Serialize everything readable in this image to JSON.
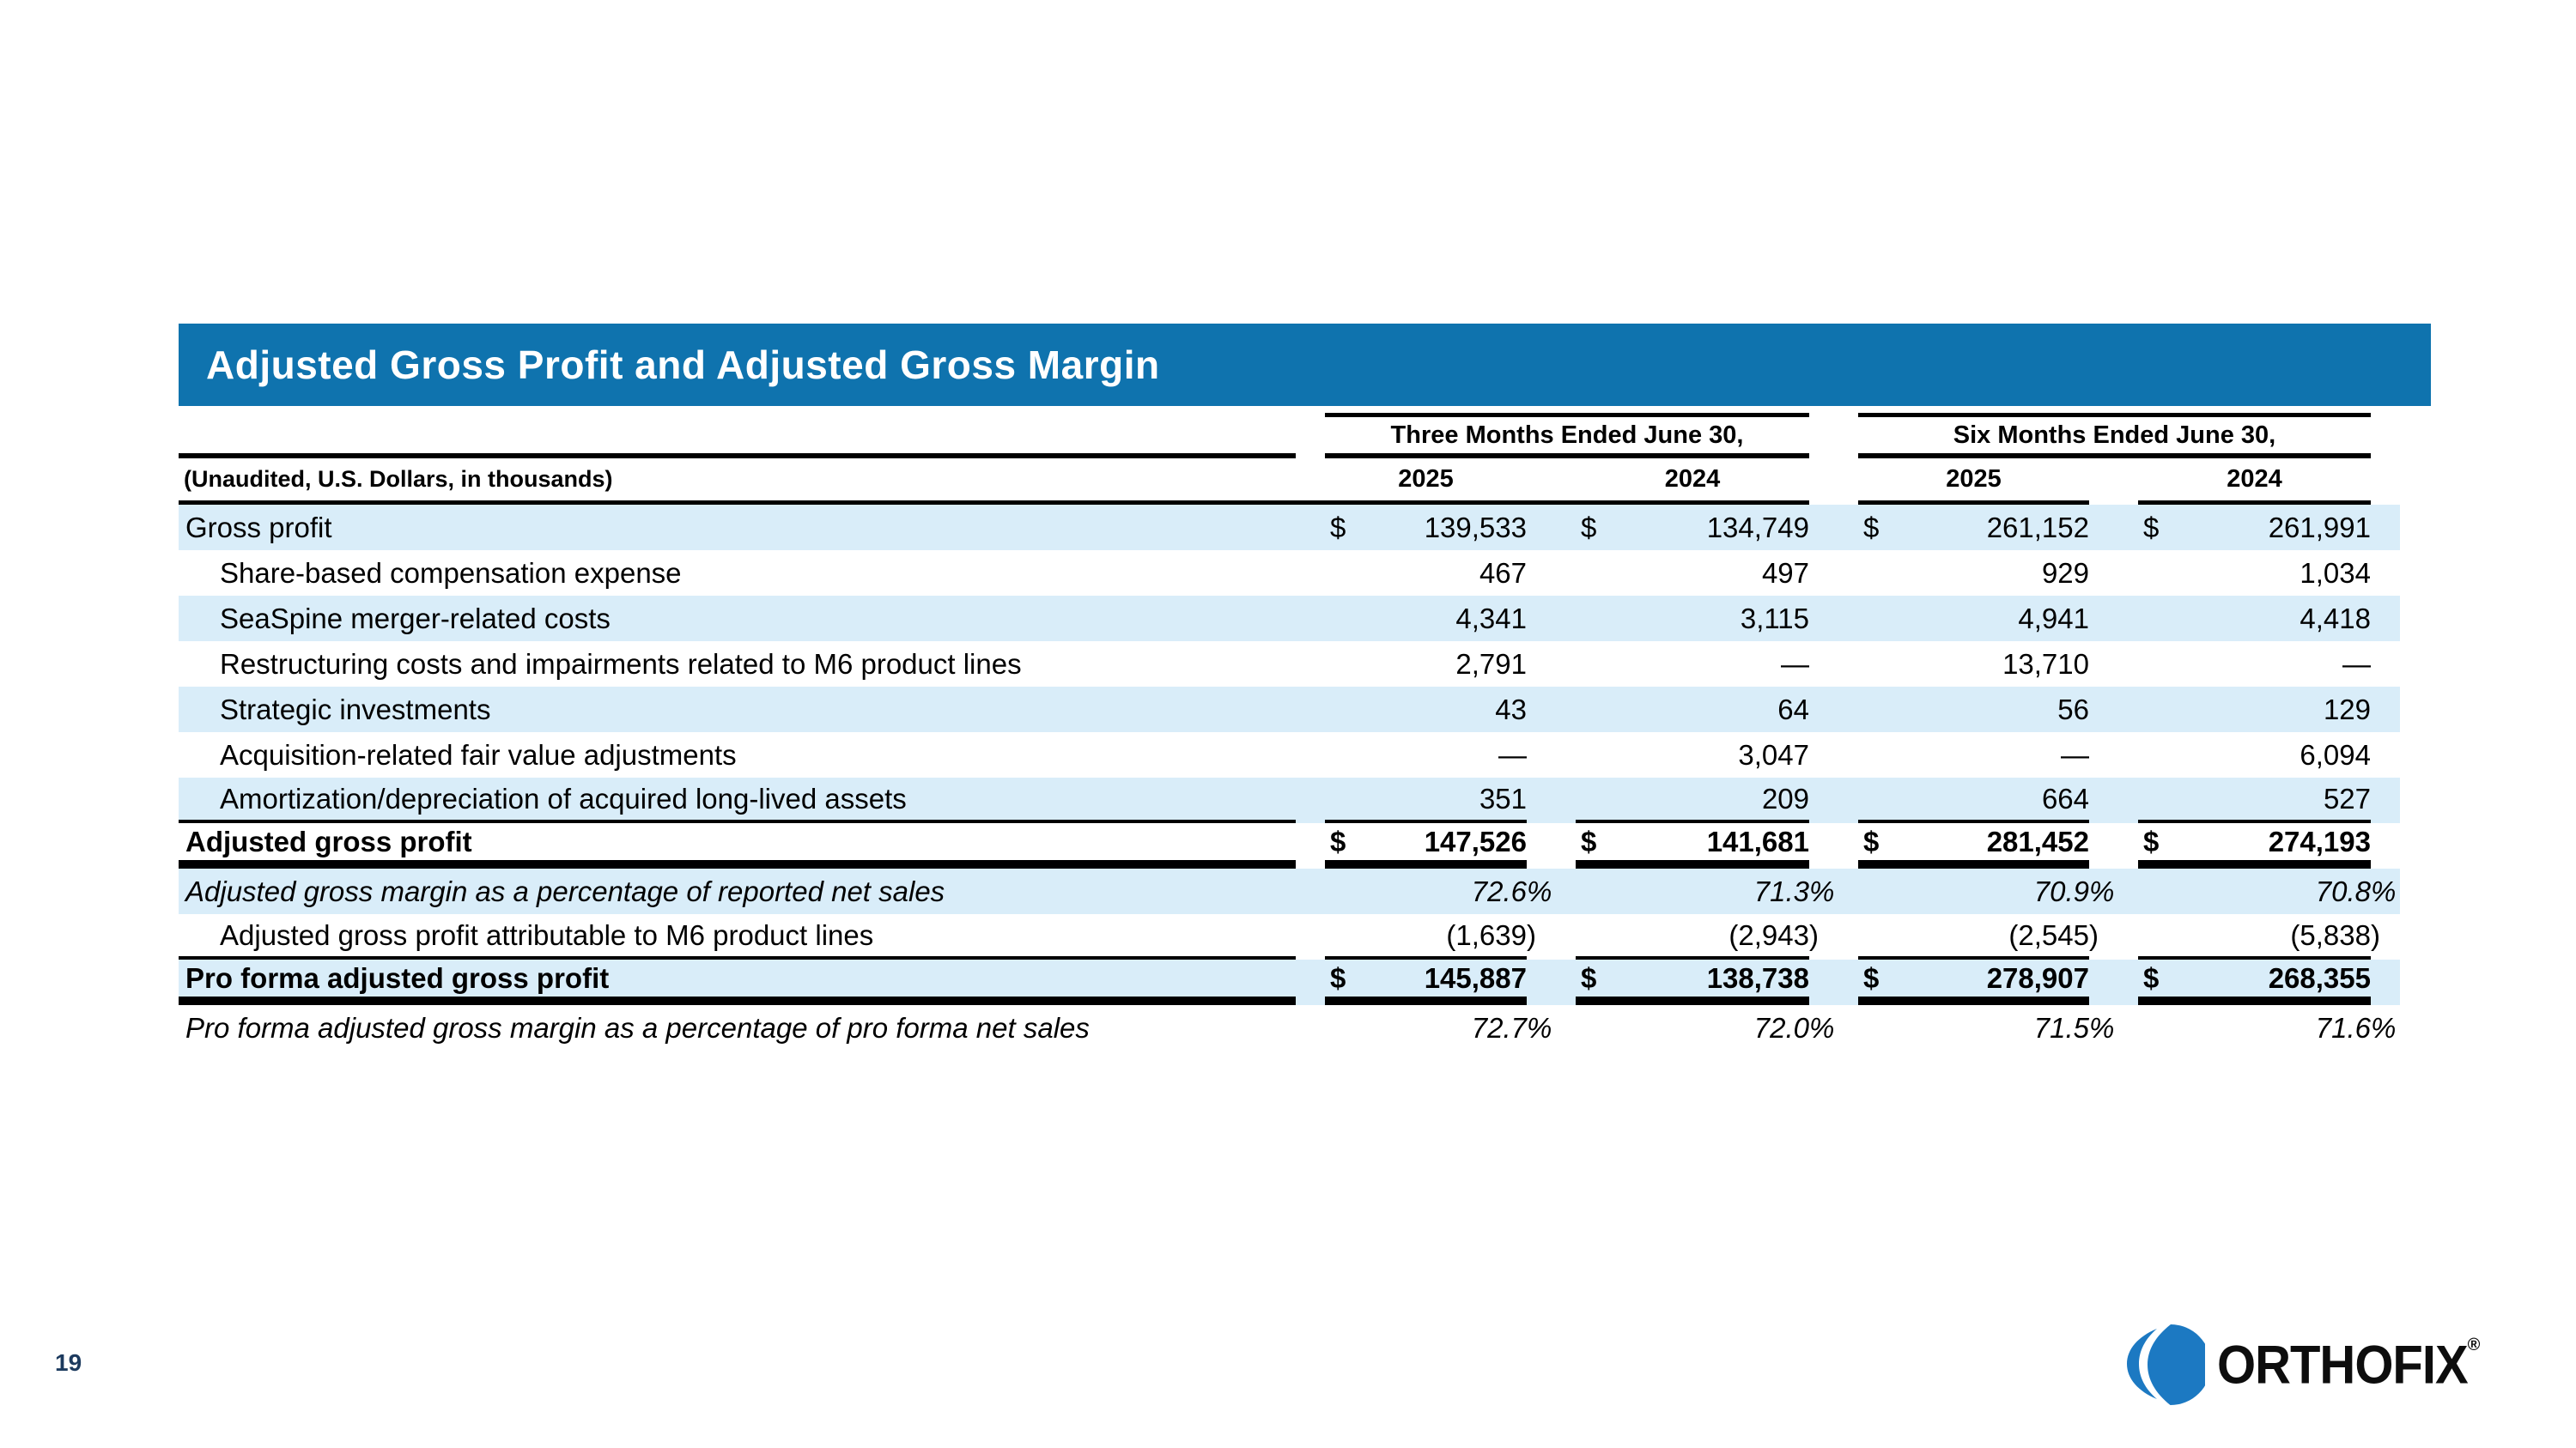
{
  "slide": {
    "title": "Adjusted Gross Profit and Adjusted Gross Margin",
    "accent_color": "#0f73ae",
    "row_band_color": "#d9edf9",
    "page_number_color": "#1c3a5e"
  },
  "table": {
    "unaudited_label": "(Unaudited, U.S. Dollars, in thousands)",
    "col_groups": [
      {
        "label": "Three Months Ended June 30,",
        "years": [
          "2025",
          "2024"
        ]
      },
      {
        "label": "Six Months Ended June 30,",
        "years": [
          "2025",
          "2024"
        ]
      }
    ],
    "rows": [
      {
        "label": "Gross profit",
        "indent": false,
        "bold": false,
        "italic": false,
        "dollar": true,
        "band": true,
        "rule_below": "none",
        "values": [
          "139,533",
          "134,749",
          "261,152",
          "261,991"
        ]
      },
      {
        "label": "Share-based compensation expense",
        "indent": true,
        "bold": false,
        "italic": false,
        "dollar": false,
        "band": false,
        "rule_below": "none",
        "values": [
          "467",
          "497",
          "929",
          "1,034"
        ]
      },
      {
        "label": "SeaSpine merger-related costs",
        "indent": true,
        "bold": false,
        "italic": false,
        "dollar": false,
        "band": true,
        "rule_below": "none",
        "values": [
          "4,341",
          "3,115",
          "4,941",
          "4,418"
        ]
      },
      {
        "label": "Restructuring costs and impairments related to M6 product lines",
        "indent": true,
        "bold": false,
        "italic": false,
        "dollar": false,
        "band": false,
        "rule_below": "none",
        "values": [
          "2,791",
          "—",
          "13,710",
          "—"
        ]
      },
      {
        "label": "Strategic investments",
        "indent": true,
        "bold": false,
        "italic": false,
        "dollar": false,
        "band": true,
        "rule_below": "none",
        "values": [
          "43",
          "64",
          "56",
          "129"
        ]
      },
      {
        "label": "Acquisition-related fair value adjustments",
        "indent": true,
        "bold": false,
        "italic": false,
        "dollar": false,
        "band": false,
        "rule_below": "none",
        "values": [
          "—",
          "3,047",
          "—",
          "6,094"
        ]
      },
      {
        "label": "Amortization/depreciation of acquired long-lived assets",
        "indent": true,
        "bold": false,
        "italic": false,
        "dollar": false,
        "band": true,
        "rule_below": "thin",
        "values": [
          "351",
          "209",
          "664",
          "527"
        ]
      },
      {
        "label": "Adjusted gross profit",
        "indent": false,
        "bold": true,
        "italic": false,
        "dollar": true,
        "band": false,
        "rule_below": "thick",
        "values": [
          "147,526",
          "141,681",
          "281,452",
          "274,193"
        ]
      },
      {
        "label": "Adjusted gross margin as a percentage of reported net sales",
        "indent": false,
        "bold": false,
        "italic": true,
        "dollar": false,
        "band": true,
        "rule_below": "none",
        "values": [
          "72.6%",
          "71.3%",
          "70.9%",
          "70.8%"
        ]
      },
      {
        "label": "Adjusted gross profit attributable to M6 product lines",
        "indent": true,
        "bold": false,
        "italic": false,
        "dollar": false,
        "band": false,
        "rule_below": "thin",
        "values": [
          "(1,639)",
          "(2,943)",
          "(2,545)",
          "(5,838)"
        ]
      },
      {
        "label": "Pro forma adjusted gross profit",
        "indent": false,
        "bold": true,
        "italic": false,
        "dollar": true,
        "band": true,
        "rule_below": "thick",
        "values": [
          "145,887",
          "138,738",
          "278,907",
          "268,355"
        ]
      },
      {
        "label": "Pro forma adjusted gross margin as a percentage of pro forma net sales",
        "indent": false,
        "bold": false,
        "italic": true,
        "dollar": false,
        "band": false,
        "rule_below": "none",
        "values": [
          "72.7%",
          "72.0%",
          "71.5%",
          "71.6%"
        ]
      }
    ],
    "currency_symbol": "$"
  },
  "footer": {
    "page_number": "19",
    "logo_text": "ORTHOFIX",
    "registered_mark": "®",
    "logo_blue": "#1c79c2"
  }
}
